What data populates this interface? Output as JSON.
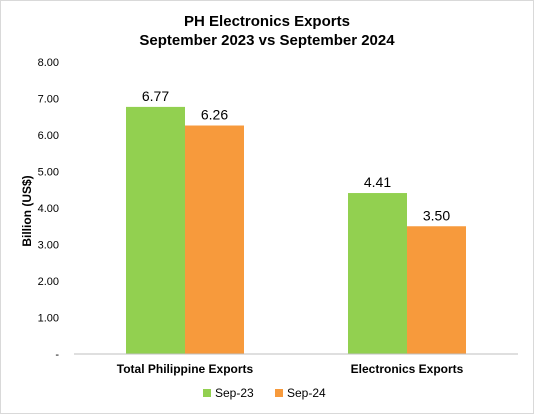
{
  "chart_data": {
    "type": "bar",
    "title": [
      "PH Electronics Exports",
      "September 2023 vs September 2024"
    ],
    "ylabel": "Billion (US$)",
    "xlabel": "",
    "categories": [
      "Total Philippine Exports",
      "Electronics Exports"
    ],
    "series": [
      {
        "name": "Sep-23",
        "values": [
          6.77,
          4.41
        ],
        "labels": [
          "6.77",
          "4.41"
        ],
        "color": "#92d050"
      },
      {
        "name": "Sep-24",
        "values": [
          6.26,
          3.5
        ],
        "labels": [
          "6.26",
          "3.50"
        ],
        "color": "#f79a3c"
      }
    ],
    "ylim": [
      0,
      8
    ],
    "yticks": [
      "-",
      "1.00",
      "2.00",
      "3.00",
      "4.00",
      "5.00",
      "6.00",
      "7.00",
      "8.00"
    ],
    "grid": false,
    "legend": "bottom"
  }
}
